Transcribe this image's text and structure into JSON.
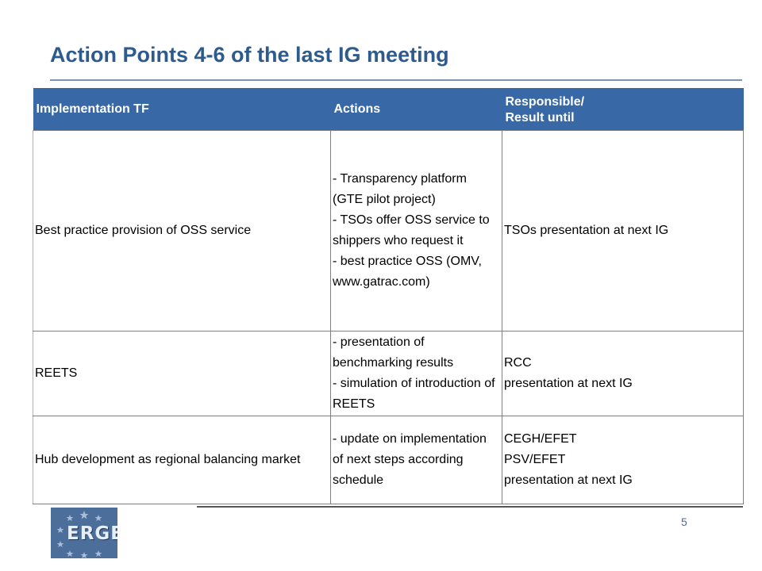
{
  "slide": {
    "title": "Action Points 4-6 of the last IG meeting",
    "page_number": "5"
  },
  "table": {
    "headers": [
      "Implementation TF",
      "Actions",
      "Responsible/\nResult until"
    ],
    "rows": [
      {
        "tf": "Best practice provision of OSS service",
        "actions": "- Transparency platform  (GTE pilot project)\n- TSOs offer OSS service to shippers who request it\n- best practice OSS (OMV, www.gatrac.com)",
        "responsible": "TSOs presentation at next IG"
      },
      {
        "tf": "REETS",
        "actions": "- presentation of benchmarking results\n- simulation of introduction of REETS",
        "responsible": "RCC\npresentation at next IG"
      },
      {
        "tf": "Hub development as regional balancing market",
        "actions": "- update on implementation of next steps according schedule",
        "responsible": "CEGH/EFET\nPSV/EFET\npresentation at next IG"
      }
    ]
  },
  "logo": {
    "text": "ERGEG",
    "color": "#4c6e9b"
  },
  "colors": {
    "title": "#2e5a8c",
    "header_bg": "#3968a6"
  }
}
